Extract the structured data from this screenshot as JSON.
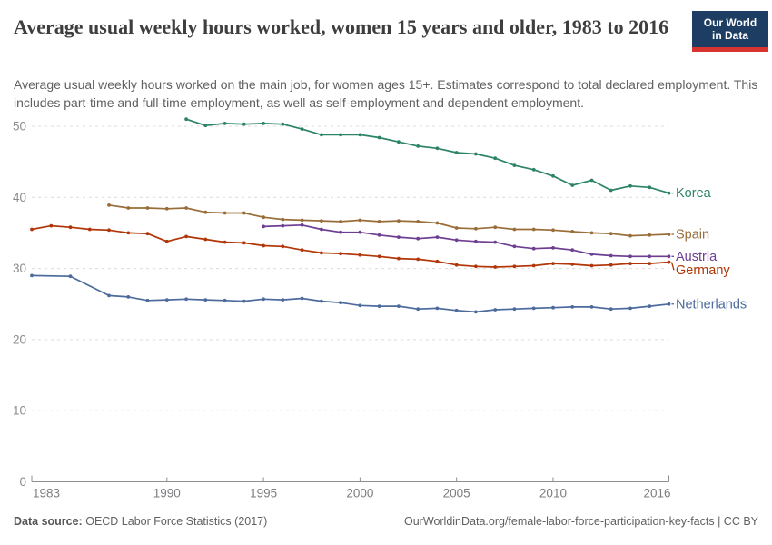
{
  "header": {
    "title": "Average usual weekly hours worked, women 15 years and older, 1983 to 2016",
    "subtitle": "Average usual weekly hours worked on the main job, for women ages 15+. Estimates correspond to total declared employment. This includes part-time and full-time employment, as well as self-employment and dependent employment.",
    "logo": {
      "line1": "Our World",
      "line2": "in Data",
      "bg_color": "#1d3d63",
      "accent_color": "#d8342f"
    }
  },
  "footer": {
    "source_label": "Data source:",
    "source_text": "OECD Labor Force Statistics (2017)",
    "link_text": "OurWorldinData.org/female-labor-force-participation-key-facts | CC BY"
  },
  "chart_data": {
    "type": "line",
    "title": "Average usual weekly hours worked, women 15 years and older, 1983 to 2016",
    "xlabel": "",
    "ylabel": "",
    "xlim": [
      1983,
      2016
    ],
    "ylim": [
      0,
      50
    ],
    "x_ticks": [
      1983,
      1990,
      1995,
      2000,
      2005,
      2010,
      2016
    ],
    "y_ticks": [
      0,
      10,
      20,
      30,
      40,
      50
    ],
    "grid": "horizontal-dashed",
    "legend_position": "end-of-line-labels",
    "marker": "dot",
    "axis_color": "#8f8f8f",
    "grid_color": "#dcdcdc",
    "tick_label_color": "#7d7d80",
    "series": [
      {
        "name": "Korea",
        "color": "#2C8465",
        "points": [
          [
            1991,
            51.0
          ],
          [
            1992,
            50.1
          ],
          [
            1993,
            50.4
          ],
          [
            1994,
            50.3
          ],
          [
            1995,
            50.4
          ],
          [
            1996,
            50.3
          ],
          [
            1997,
            49.6
          ],
          [
            1998,
            48.8
          ],
          [
            1999,
            48.8
          ],
          [
            2000,
            48.8
          ],
          [
            2001,
            48.4
          ],
          [
            2002,
            47.8
          ],
          [
            2003,
            47.2
          ],
          [
            2004,
            46.9
          ],
          [
            2005,
            46.3
          ],
          [
            2006,
            46.1
          ],
          [
            2007,
            45.5
          ],
          [
            2008,
            44.5
          ],
          [
            2009,
            43.9
          ],
          [
            2010,
            43.0
          ],
          [
            2011,
            41.7
          ],
          [
            2012,
            42.4
          ],
          [
            2013,
            41.0
          ],
          [
            2014,
            41.6
          ],
          [
            2015,
            41.4
          ],
          [
            2016,
            40.6
          ]
        ]
      },
      {
        "name": "Spain",
        "color": "#996D39",
        "points": [
          [
            1987,
            38.9
          ],
          [
            1988,
            38.5
          ],
          [
            1989,
            38.5
          ],
          [
            1990,
            38.4
          ],
          [
            1991,
            38.5
          ],
          [
            1992,
            37.9
          ],
          [
            1993,
            37.8
          ],
          [
            1994,
            37.8
          ],
          [
            1995,
            37.2
          ],
          [
            1996,
            36.9
          ],
          [
            1997,
            36.8
          ],
          [
            1998,
            36.7
          ],
          [
            1999,
            36.6
          ],
          [
            2000,
            36.8
          ],
          [
            2001,
            36.6
          ],
          [
            2002,
            36.7
          ],
          [
            2003,
            36.6
          ],
          [
            2004,
            36.4
          ],
          [
            2005,
            35.7
          ],
          [
            2006,
            35.6
          ],
          [
            2007,
            35.8
          ],
          [
            2008,
            35.5
          ],
          [
            2009,
            35.5
          ],
          [
            2010,
            35.4
          ],
          [
            2011,
            35.2
          ],
          [
            2012,
            35.0
          ],
          [
            2013,
            34.9
          ],
          [
            2014,
            34.6
          ],
          [
            2015,
            34.7
          ],
          [
            2016,
            34.8
          ]
        ]
      },
      {
        "name": "Austria",
        "color": "#6D3E91",
        "points": [
          [
            1995,
            35.9
          ],
          [
            1996,
            36.0
          ],
          [
            1997,
            36.1
          ],
          [
            1998,
            35.5
          ],
          [
            1999,
            35.1
          ],
          [
            2000,
            35.1
          ],
          [
            2001,
            34.7
          ],
          [
            2002,
            34.4
          ],
          [
            2003,
            34.2
          ],
          [
            2004,
            34.4
          ],
          [
            2005,
            34.0
          ],
          [
            2006,
            33.8
          ],
          [
            2007,
            33.7
          ],
          [
            2008,
            33.1
          ],
          [
            2009,
            32.8
          ],
          [
            2010,
            32.9
          ],
          [
            2011,
            32.6
          ],
          [
            2012,
            32.0
          ],
          [
            2013,
            31.8
          ],
          [
            2014,
            31.7
          ],
          [
            2015,
            31.7
          ],
          [
            2016,
            31.7
          ]
        ]
      },
      {
        "name": "Germany",
        "color": "#B13507",
        "points": [
          [
            1983,
            35.5
          ],
          [
            1984,
            36.0
          ],
          [
            1985,
            35.8
          ],
          [
            1986,
            35.5
          ],
          [
            1987,
            35.4
          ],
          [
            1988,
            35.0
          ],
          [
            1989,
            34.9
          ],
          [
            1990,
            33.8
          ],
          [
            1991,
            34.5
          ],
          [
            1992,
            34.1
          ],
          [
            1993,
            33.7
          ],
          [
            1994,
            33.6
          ],
          [
            1995,
            33.2
          ],
          [
            1996,
            33.1
          ],
          [
            1997,
            32.6
          ],
          [
            1998,
            32.2
          ],
          [
            1999,
            32.1
          ],
          [
            2000,
            31.9
          ],
          [
            2001,
            31.7
          ],
          [
            2002,
            31.4
          ],
          [
            2003,
            31.3
          ],
          [
            2004,
            31.0
          ],
          [
            2005,
            30.5
          ],
          [
            2006,
            30.3
          ],
          [
            2007,
            30.2
          ],
          [
            2008,
            30.3
          ],
          [
            2009,
            30.4
          ],
          [
            2010,
            30.7
          ],
          [
            2011,
            30.6
          ],
          [
            2012,
            30.4
          ],
          [
            2013,
            30.5
          ],
          [
            2014,
            30.7
          ],
          [
            2015,
            30.7
          ],
          [
            2016,
            30.9
          ]
        ]
      },
      {
        "name": "Netherlands",
        "color": "#4C6A9C",
        "points": [
          [
            1983,
            29.0
          ],
          [
            1985,
            28.9
          ],
          [
            1987,
            26.2
          ],
          [
            1988,
            26.0
          ],
          [
            1989,
            25.5
          ],
          [
            1990,
            25.6
          ],
          [
            1991,
            25.7
          ],
          [
            1992,
            25.6
          ],
          [
            1993,
            25.5
          ],
          [
            1994,
            25.4
          ],
          [
            1995,
            25.7
          ],
          [
            1996,
            25.6
          ],
          [
            1997,
            25.8
          ],
          [
            1998,
            25.4
          ],
          [
            1999,
            25.2
          ],
          [
            2000,
            24.8
          ],
          [
            2001,
            24.7
          ],
          [
            2002,
            24.7
          ],
          [
            2003,
            24.3
          ],
          [
            2004,
            24.4
          ],
          [
            2005,
            24.1
          ],
          [
            2006,
            23.9
          ],
          [
            2007,
            24.2
          ],
          [
            2008,
            24.3
          ],
          [
            2009,
            24.4
          ],
          [
            2010,
            24.5
          ],
          [
            2011,
            24.6
          ],
          [
            2012,
            24.6
          ],
          [
            2013,
            24.3
          ],
          [
            2014,
            24.4
          ],
          [
            2015,
            24.7
          ],
          [
            2016,
            25.0
          ]
        ]
      }
    ]
  }
}
